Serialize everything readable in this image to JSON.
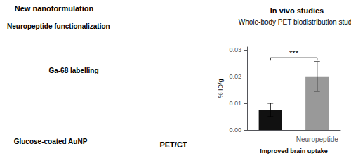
{
  "chart_data": {
    "type": "bar",
    "title": "In vivo studies",
    "subtitle": "Whole-body PET biodistribution study",
    "xlabel": "Improved brain uptake",
    "ylabel": "% ID/g",
    "categories": [
      "-",
      "Neuropeptide"
    ],
    "values": [
      0.0075,
      0.02
    ],
    "errors": [
      0.0025,
      0.0055
    ],
    "colors": [
      "#111111",
      "#999999"
    ],
    "ylim": [
      0,
      0.031
    ],
    "yticks": [
      {
        "value": 0,
        "label": "0.00"
      },
      0.01,
      0.02,
      0.03
    ],
    "grid": false,
    "annotations": [
      {
        "text": "***",
        "between": [
          "-",
          "Neuropeptide"
        ],
        "y": 0.027
      },
      {
        "text": "New nanoformulation"
      },
      {
        "text": "Neuropeptide functionalization"
      },
      {
        "text": "Ga-68 labelling"
      },
      {
        "text": "Glucose-coated AuNP"
      },
      {
        "text": "PET/CT"
      }
    ]
  }
}
